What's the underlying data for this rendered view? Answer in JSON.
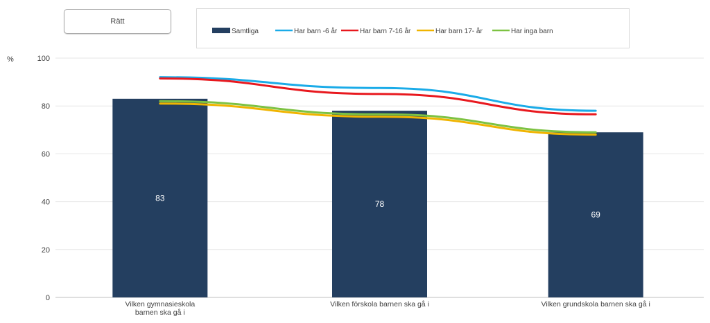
{
  "filter": {
    "label": "Rätt"
  },
  "chart_data": {
    "type": "bar",
    "ylabel": "%",
    "ylim": [
      0,
      100
    ],
    "yticks": [
      0,
      20,
      40,
      60,
      80,
      100
    ],
    "grid": true,
    "legend_position": "top",
    "categories": [
      [
        "Vilken gymnasieskola",
        "barnen ska gå i"
      ],
      [
        "Vilken förskola barnen ska gå i"
      ],
      [
        "Vilken grundskola barnen ska gå i"
      ]
    ],
    "series": [
      {
        "name": "Samtliga",
        "kind": "bar",
        "color": "#243F60",
        "values": [
          83,
          78,
          69
        ],
        "data_labels": [
          "83",
          "78",
          "69"
        ]
      },
      {
        "name": "Har barn -6 år",
        "kind": "line",
        "color": "#1AABE8",
        "values": [
          92,
          87.5,
          78
        ]
      },
      {
        "name": "Har barn 7-16 år",
        "kind": "line",
        "color": "#E8181E",
        "values": [
          91.5,
          85,
          76.5
        ]
      },
      {
        "name": "Har barn 17- år",
        "kind": "line",
        "color": "#F0B400",
        "values": [
          81,
          75.5,
          68
        ]
      },
      {
        "name": "Har inga barn",
        "kind": "line",
        "color": "#7DC242",
        "values": [
          82,
          76.5,
          69
        ]
      }
    ]
  }
}
